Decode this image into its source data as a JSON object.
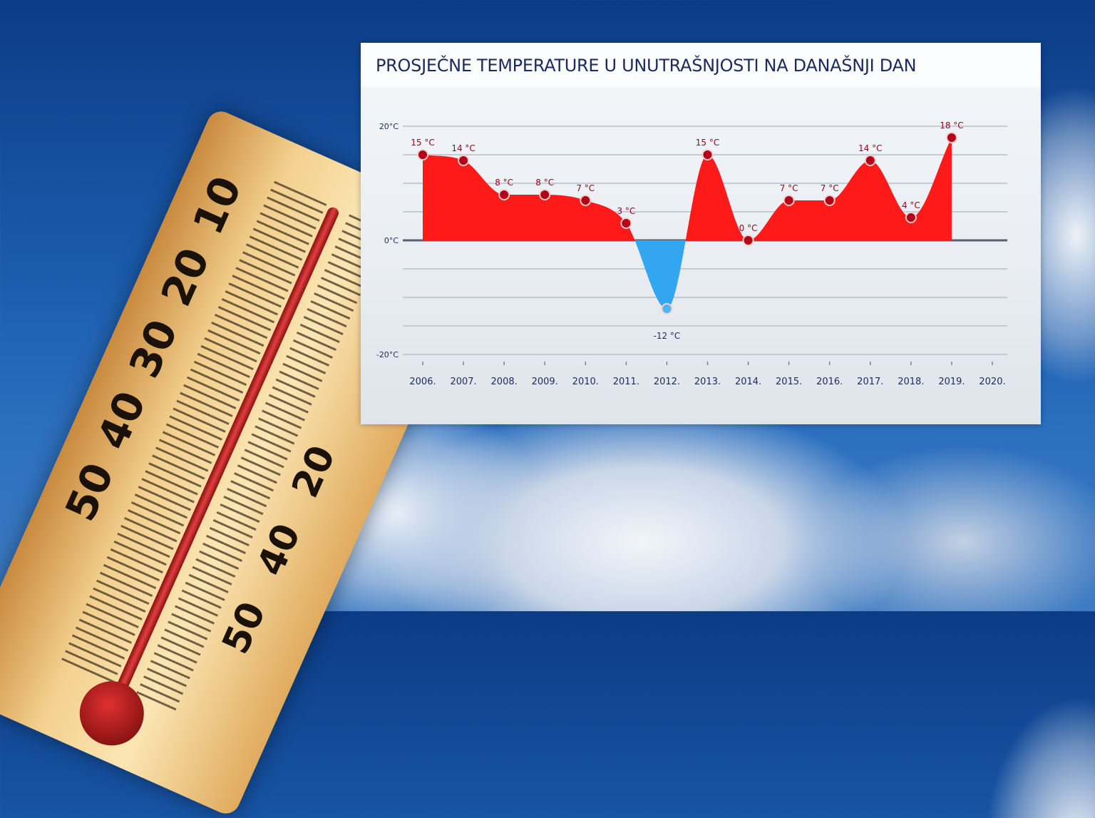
{
  "background": {
    "thermometer_scale_left": [
      "50",
      "40",
      "30",
      "20",
      "10"
    ],
    "thermometer_scale_right": [
      "20",
      "40",
      "50"
    ]
  },
  "chart_data": {
    "type": "area",
    "title": "PROSJEČNE TEMPERATURE U UNUTRAŠNJOSTI NA DANAŠNJI DAN",
    "xlabel": "",
    "ylabel": "",
    "categories": [
      "2006.",
      "2007.",
      "2008.",
      "2009.",
      "2010.",
      "2011.",
      "2012.",
      "2013.",
      "2014.",
      "2015.",
      "2016.",
      "2017.",
      "2018.",
      "2019.",
      "2020."
    ],
    "values": [
      15,
      14,
      8,
      8,
      7,
      3,
      -12,
      15,
      0,
      7,
      7,
      14,
      4,
      18,
      null
    ],
    "data_labels": [
      "15 °C",
      "14 °C",
      "8 °C",
      "8 °C",
      "7 °C",
      "3 °C",
      "-12 °C",
      "15 °C",
      "0 °C",
      "7 °C",
      "7 °C",
      "14 °C",
      "4 °C",
      "18 °C",
      ""
    ],
    "ylim": [
      -20,
      20
    ],
    "yticks": [
      20,
      0,
      -20
    ],
    "ytick_labels": [
      "20°C",
      "0°C",
      "-20°C"
    ],
    "grid": true,
    "grid_step": 5,
    "colors": {
      "positive": "#ff1a1a",
      "negative": "#33a6f2",
      "point": "#b3001b",
      "label": "#a0001a",
      "axis_text": "#1d2a5e"
    }
  }
}
